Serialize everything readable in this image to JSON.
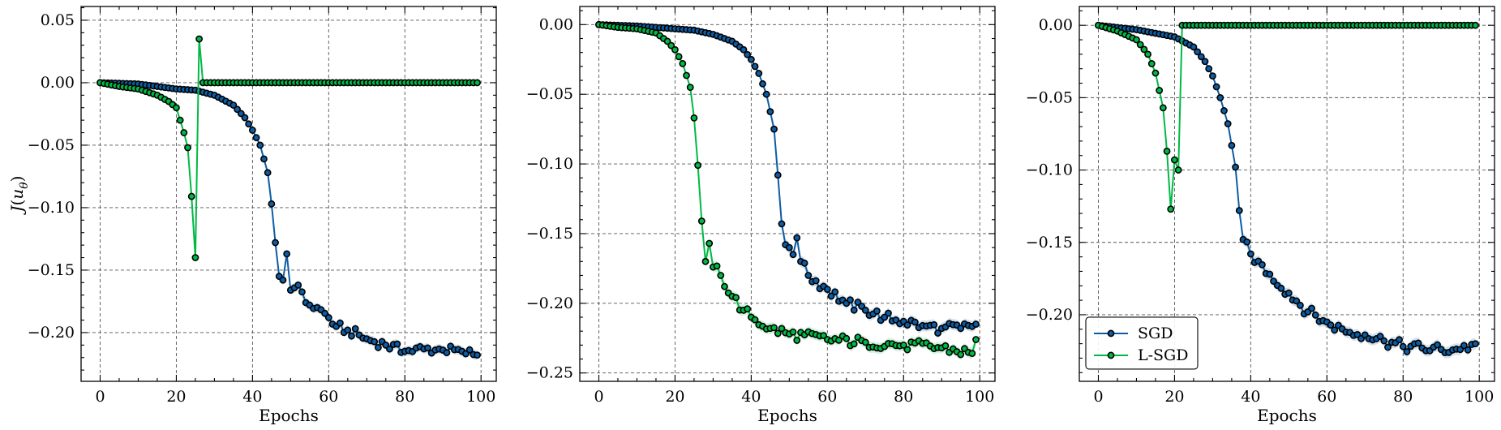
{
  "colors": {
    "SGD": "#0C5DA5",
    "L-SGD": "#00B945",
    "marker_edge": "#000000",
    "grid": "#555555"
  },
  "chart_data": [
    {
      "type": "line",
      "xlabel": "Epochs",
      "ylabel": "J(u_θ)",
      "xlim": [
        -5,
        104
      ],
      "ylim": [
        -0.239,
        0.061
      ],
      "xticks": [
        0,
        20,
        40,
        60,
        80,
        100
      ],
      "xtick_labels": [
        "0",
        "20",
        "40",
        "60",
        "80",
        "100"
      ],
      "yticks": [
        0.05,
        0.0,
        -0.05,
        -0.1,
        -0.15,
        -0.2
      ],
      "ytick_labels": [
        "0.05",
        "0.00",
        "−0.05",
        "−0.10",
        "−0.15",
        "−0.20"
      ],
      "grid": true,
      "series": [
        {
          "name": "SGD",
          "keypoints": [
            [
              0,
              0.0
            ],
            [
              10,
              -0.001
            ],
            [
              20,
              -0.005
            ],
            [
              25,
              -0.006
            ],
            [
              30,
              -0.01
            ],
            [
              35,
              -0.018
            ],
            [
              38,
              -0.028
            ],
            [
              40,
              -0.038
            ],
            [
              42,
              -0.05
            ],
            [
              44,
              -0.072
            ],
            [
              45,
              -0.097
            ],
            [
              46,
              -0.128
            ],
            [
              47,
              -0.155
            ],
            [
              48,
              -0.158
            ],
            [
              49,
              -0.137
            ],
            [
              50,
              -0.166
            ],
            [
              52,
              -0.162
            ],
            [
              55,
              -0.178
            ],
            [
              57,
              -0.18
            ],
            [
              60,
              -0.188
            ],
            [
              62,
              -0.195
            ],
            [
              65,
              -0.198
            ],
            [
              70,
              -0.205
            ],
            [
              75,
              -0.21
            ],
            [
              80,
              -0.215
            ],
            [
              85,
              -0.213
            ],
            [
              90,
              -0.214
            ],
            [
              95,
              -0.215
            ],
            [
              99,
              -0.218
            ]
          ]
        },
        {
          "name": "L-SGD",
          "keypoints": [
            [
              0,
              0.0
            ],
            [
              5,
              -0.003
            ],
            [
              10,
              -0.005
            ],
            [
              15,
              -0.01
            ],
            [
              18,
              -0.015
            ],
            [
              20,
              -0.02
            ],
            [
              22,
              -0.04
            ],
            [
              23,
              -0.052
            ],
            [
              24,
              -0.091
            ],
            [
              25,
              -0.14
            ],
            [
              26,
              0.035
            ],
            [
              27,
              0.0
            ],
            [
              99,
              0.0
            ]
          ]
        }
      ]
    },
    {
      "type": "line",
      "xlabel": "Epochs",
      "ylabel": "",
      "xlim": [
        -5,
        104
      ],
      "ylim": [
        -0.256,
        0.013
      ],
      "xticks": [
        0,
        20,
        40,
        60,
        80,
        100
      ],
      "xtick_labels": [
        "0",
        "20",
        "40",
        "60",
        "80",
        "100"
      ],
      "yticks": [
        0.0,
        -0.05,
        -0.1,
        -0.15,
        -0.2,
        -0.25
      ],
      "ytick_labels": [
        "0.00",
        "−0.05",
        "−0.10",
        "−0.15",
        "−0.20",
        "−0.25"
      ],
      "grid": true,
      "series": [
        {
          "name": "SGD",
          "keypoints": [
            [
              0,
              0.0
            ],
            [
              10,
              -0.001
            ],
            [
              20,
              -0.003
            ],
            [
              25,
              -0.004
            ],
            [
              30,
              -0.007
            ],
            [
              35,
              -0.012
            ],
            [
              38,
              -0.018
            ],
            [
              40,
              -0.025
            ],
            [
              42,
              -0.035
            ],
            [
              44,
              -0.05
            ],
            [
              46,
              -0.075
            ],
            [
              47,
              -0.108
            ],
            [
              48,
              -0.143
            ],
            [
              49,
              -0.158
            ],
            [
              50,
              -0.16
            ],
            [
              51,
              -0.165
            ],
            [
              52,
              -0.153
            ],
            [
              53,
              -0.17
            ],
            [
              55,
              -0.18
            ],
            [
              60,
              -0.19
            ],
            [
              65,
              -0.2
            ],
            [
              70,
              -0.205
            ],
            [
              75,
              -0.21
            ],
            [
              80,
              -0.213
            ],
            [
              85,
              -0.216
            ],
            [
              90,
              -0.218
            ],
            [
              95,
              -0.218
            ],
            [
              99,
              -0.215
            ]
          ]
        },
        {
          "name": "L-SGD",
          "keypoints": [
            [
              0,
              0.0
            ],
            [
              5,
              -0.002
            ],
            [
              10,
              -0.003
            ],
            [
              15,
              -0.006
            ],
            [
              18,
              -0.012
            ],
            [
              20,
              -0.018
            ],
            [
              22,
              -0.028
            ],
            [
              24,
              -0.045
            ],
            [
              25,
              -0.067
            ],
            [
              26,
              -0.101
            ],
            [
              27,
              -0.141
            ],
            [
              28,
              -0.17
            ],
            [
              29,
              -0.157
            ],
            [
              30,
              -0.174
            ],
            [
              32,
              -0.18
            ],
            [
              35,
              -0.195
            ],
            [
              38,
              -0.205
            ],
            [
              40,
              -0.21
            ],
            [
              45,
              -0.218
            ],
            [
              50,
              -0.222
            ],
            [
              60,
              -0.226
            ],
            [
              70,
              -0.228
            ],
            [
              80,
              -0.23
            ],
            [
              90,
              -0.232
            ],
            [
              98,
              -0.236
            ],
            [
              99,
              -0.226
            ]
          ]
        }
      ]
    },
    {
      "type": "line",
      "xlabel": "Epochs",
      "ylabel": "",
      "xlim": [
        -5,
        104
      ],
      "ylim": [
        -0.246,
        0.013
      ],
      "xticks": [
        0,
        20,
        40,
        60,
        80,
        100
      ],
      "xtick_labels": [
        "0",
        "20",
        "40",
        "60",
        "80",
        "100"
      ],
      "yticks": [
        0.0,
        -0.05,
        -0.1,
        -0.15,
        -0.2
      ],
      "ytick_labels": [
        "0.00",
        "−0.05",
        "−0.10",
        "−0.15",
        "−0.20"
      ],
      "grid": true,
      "legend": {
        "placement": "lower-left",
        "entries": [
          "SGD",
          "L-SGD"
        ]
      },
      "series": [
        {
          "name": "SGD",
          "keypoints": [
            [
              0,
              0.0
            ],
            [
              10,
              -0.003
            ],
            [
              20,
              -0.008
            ],
            [
              25,
              -0.015
            ],
            [
              28,
              -0.025
            ],
            [
              30,
              -0.035
            ],
            [
              32,
              -0.05
            ],
            [
              34,
              -0.068
            ],
            [
              36,
              -0.098
            ],
            [
              37,
              -0.128
            ],
            [
              38,
              -0.148
            ],
            [
              40,
              -0.158
            ],
            [
              42,
              -0.163
            ],
            [
              45,
              -0.172
            ],
            [
              50,
              -0.185
            ],
            [
              55,
              -0.198
            ],
            [
              60,
              -0.205
            ],
            [
              65,
              -0.212
            ],
            [
              70,
              -0.214
            ],
            [
              75,
              -0.218
            ],
            [
              80,
              -0.222
            ],
            [
              85,
              -0.223
            ],
            [
              90,
              -0.224
            ],
            [
              95,
              -0.224
            ],
            [
              99,
              -0.22
            ]
          ]
        },
        {
          "name": "L-SGD",
          "keypoints": [
            [
              0,
              0.0
            ],
            [
              5,
              -0.004
            ],
            [
              10,
              -0.01
            ],
            [
              13,
              -0.02
            ],
            [
              15,
              -0.033
            ],
            [
              17,
              -0.057
            ],
            [
              18,
              -0.087
            ],
            [
              19,
              -0.127
            ],
            [
              20,
              -0.093
            ],
            [
              21,
              -0.1
            ],
            [
              22,
              0.0
            ],
            [
              99,
              0.0
            ]
          ]
        }
      ]
    }
  ]
}
